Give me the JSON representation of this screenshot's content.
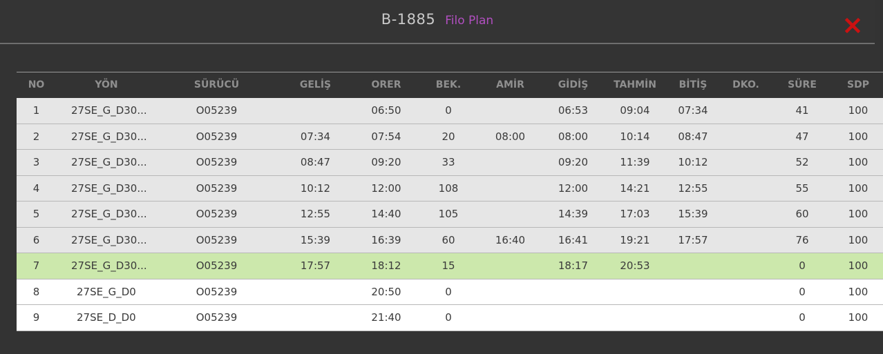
{
  "header": {
    "code": "B-1885",
    "subtitle": "Filo Plan"
  },
  "close_icon": "close-x-icon",
  "colors": {
    "accent": "#b14fc0",
    "close": "#cc1111",
    "active_row": "#cce8ac"
  },
  "columns": [
    "NO",
    "YÖN",
    "SÜRÜCÜ",
    "GELİŞ",
    "ORER",
    "BEK.",
    "AMİR",
    "GİDİŞ",
    "TAHMİN",
    "BİTİŞ",
    "DKO.",
    "SÜRE",
    "SDP"
  ],
  "rows": [
    {
      "status": "done",
      "cells": [
        "1",
        "27SE_G_D30...",
        "O05239",
        "",
        "06:50",
        "0",
        "",
        "06:53",
        "09:04",
        "07:34",
        "",
        "41",
        "100"
      ]
    },
    {
      "status": "done",
      "cells": [
        "2",
        "27SE_G_D30...",
        "O05239",
        "07:34",
        "07:54",
        "20",
        "08:00",
        "08:00",
        "10:14",
        "08:47",
        "",
        "47",
        "100"
      ]
    },
    {
      "status": "done",
      "cells": [
        "3",
        "27SE_G_D30...",
        "O05239",
        "08:47",
        "09:20",
        "33",
        "",
        "09:20",
        "11:39",
        "10:12",
        "",
        "52",
        "100"
      ]
    },
    {
      "status": "done",
      "cells": [
        "4",
        "27SE_G_D30...",
        "O05239",
        "10:12",
        "12:00",
        "108",
        "",
        "12:00",
        "14:21",
        "12:55",
        "",
        "55",
        "100"
      ]
    },
    {
      "status": "done",
      "cells": [
        "5",
        "27SE_G_D30...",
        "O05239",
        "12:55",
        "14:40",
        "105",
        "",
        "14:39",
        "17:03",
        "15:39",
        "",
        "60",
        "100"
      ]
    },
    {
      "status": "done",
      "cells": [
        "6",
        "27SE_G_D30...",
        "O05239",
        "15:39",
        "16:39",
        "60",
        "16:40",
        "16:41",
        "19:21",
        "17:57",
        "",
        "76",
        "100"
      ]
    },
    {
      "status": "active",
      "cells": [
        "7",
        "27SE_G_D30...",
        "O05239",
        "17:57",
        "18:12",
        "15",
        "",
        "18:17",
        "20:53",
        "",
        "",
        "0",
        "100"
      ]
    },
    {
      "status": "future",
      "cells": [
        "8",
        "27SE_G_D0",
        "O05239",
        "",
        "20:50",
        "0",
        "",
        "",
        "",
        "",
        "",
        "0",
        "100"
      ]
    },
    {
      "status": "future",
      "cells": [
        "9",
        "27SE_D_D0",
        "O05239",
        "",
        "21:40",
        "0",
        "",
        "",
        "",
        "",
        "",
        "0",
        "100"
      ]
    }
  ]
}
